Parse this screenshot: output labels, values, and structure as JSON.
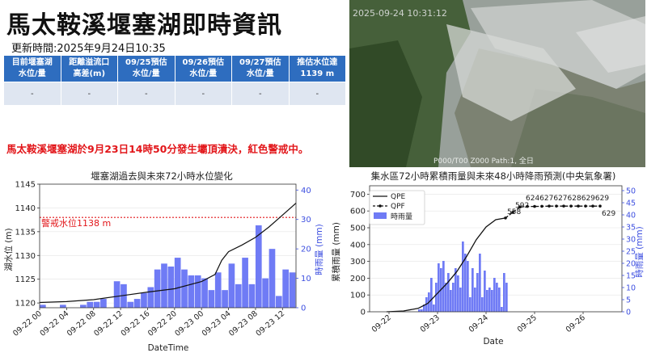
{
  "header": {
    "title": "馬太鞍溪堰塞湖即時資訊",
    "update_time": "更新時間:2025年9月24日10:35"
  },
  "status_table": {
    "headers": [
      [
        "目前堰塞湖",
        "水位/量"
      ],
      [
        "距離溢流口",
        "高差(m)"
      ],
      [
        "09/25預估",
        "水位/量"
      ],
      [
        "09/26預估",
        "水位/量"
      ],
      [
        "09/27預估",
        "水位/量"
      ],
      [
        "推估水位達",
        "1139 m"
      ]
    ],
    "values": [
      "-",
      "-",
      "-",
      "-",
      "-",
      "-"
    ]
  },
  "alert": "馬太鞍溪堰塞湖於9月23日14時50分發生壩頂潰決，紅色警戒中。",
  "camera": {
    "timestamp": "2025-09-24 10:31:12",
    "footer": "P000/T00   Z000   Path:1, 全日"
  },
  "colors": {
    "header_blue": "#2e6dbf",
    "alert_red": "#e2161a",
    "bar_blue": "#6f7bf5"
  },
  "chart_data": [
    {
      "type": "bar+line",
      "title": "堰塞湖過去與未來72小時水位變化",
      "xlabel": "DateTime",
      "ylabel_left": "湖水位 (m)",
      "ylabel_right": "時雨量 (mm)",
      "ylim_left": [
        1119,
        1145
      ],
      "ylim_right": [
        0,
        42
      ],
      "y_ticks_left": [
        1120,
        1125,
        1130,
        1135,
        1140,
        1145
      ],
      "y_ticks_right": [
        0,
        10,
        20,
        30,
        40
      ],
      "x_ticks": [
        "09-22 00",
        "09-22 04",
        "09-22 08",
        "09-22 12",
        "09-22 16",
        "09-22 20",
        "09-23 00",
        "09-23 04",
        "09-23 08",
        "09-23 12"
      ],
      "warning_level": 1138,
      "warning_label": "警戒水位1138 m",
      "x_range_hours": [
        0,
        38
      ],
      "water_level": {
        "hours": [
          0,
          4,
          8,
          12,
          16,
          20,
          24,
          26,
          27,
          28,
          30,
          32,
          34,
          36,
          38
        ],
        "values": [
          1120.1,
          1120.3,
          1120.7,
          1121.5,
          1122.3,
          1123.0,
          1124.5,
          1126.0,
          1129.0,
          1130.8,
          1132.2,
          1133.8,
          1136.0,
          1138.5,
          1141.0
        ]
      },
      "rainfall": {
        "hours": [
          0,
          1,
          2,
          3,
          4,
          5,
          6,
          7,
          8,
          9,
          10,
          11,
          12,
          13,
          14,
          15,
          16,
          17,
          18,
          19,
          20,
          21,
          22,
          23,
          24,
          25,
          26,
          27,
          28,
          29,
          30,
          31,
          32,
          33,
          34,
          35,
          36,
          37
        ],
        "values": [
          1,
          0,
          0,
          1,
          0,
          0,
          1,
          2,
          2,
          3,
          0,
          9,
          8,
          2,
          3,
          5,
          7,
          13,
          15,
          14,
          17,
          13,
          11,
          11,
          10,
          6,
          12,
          6,
          15,
          8,
          17,
          8,
          28,
          10,
          20,
          4,
          13,
          12
        ]
      }
    },
    {
      "type": "line+bar",
      "title": "集水區72小時累積雨量與未來48小時降雨預測(中央氣象署)",
      "xlabel": "Date",
      "ylabel_left": "累積雨量 (mm)",
      "ylabel_right": "時雨量 (mm)",
      "ylim_left": [
        0,
        750
      ],
      "ylim_right": [
        0,
        52
      ],
      "y_ticks_left": [
        0,
        100,
        200,
        300,
        400,
        500,
        600,
        700
      ],
      "y_ticks_right": [
        0,
        5,
        10,
        15,
        20,
        25,
        30,
        35,
        40,
        45,
        50
      ],
      "x_ticks": [
        "09-22",
        "09-23",
        "09-24",
        "09-25",
        "09-26"
      ],
      "x_range_days": [
        0.6,
        5.8
      ],
      "legend": [
        "QPE",
        "QPF",
        "時雨量"
      ],
      "qpe": {
        "days": [
          0.95,
          1.3,
          1.6,
          1.8,
          2.0,
          2.2,
          2.4,
          2.6,
          2.8,
          3.0,
          3.2,
          3.4
        ],
        "values": [
          0,
          5,
          20,
          50,
          110,
          170,
          240,
          330,
          430,
          505,
          548,
          558
        ]
      },
      "qpf": {
        "days": [
          3.4,
          3.55,
          3.7,
          3.85,
          4.0,
          4.15,
          4.3,
          4.45,
          4.6,
          4.75,
          4.9,
          5.05,
          5.2,
          5.35
        ],
        "values": [
          558,
          592,
          624,
          627,
          627,
          628,
          629,
          629,
          629,
          629,
          629,
          629,
          629,
          629
        ]
      },
      "point_labels": [
        "558",
        "592",
        "624627627628629629",
        "629"
      ],
      "rainfall": {
        "days": [
          1.6,
          1.65,
          1.7,
          1.75,
          1.8,
          1.85,
          1.9,
          1.95,
          2.0,
          2.05,
          2.1,
          2.15,
          2.2,
          2.25,
          2.3,
          2.35,
          2.4,
          2.45,
          2.5,
          2.55,
          2.6,
          2.65,
          2.7,
          2.75,
          2.8,
          2.85,
          2.9,
          2.95,
          3.0,
          3.05,
          3.1,
          3.15,
          3.2,
          3.25,
          3.3,
          3.35,
          3.4
        ],
        "values": [
          1,
          1,
          3,
          6,
          8,
          14,
          3,
          12,
          20,
          18,
          21,
          12,
          16,
          9,
          12,
          18,
          15,
          10,
          29,
          24,
          21,
          6,
          18,
          10,
          16,
          24,
          6,
          17,
          9,
          10,
          9,
          14,
          12,
          10,
          2,
          16,
          12
        ]
      }
    }
  ]
}
